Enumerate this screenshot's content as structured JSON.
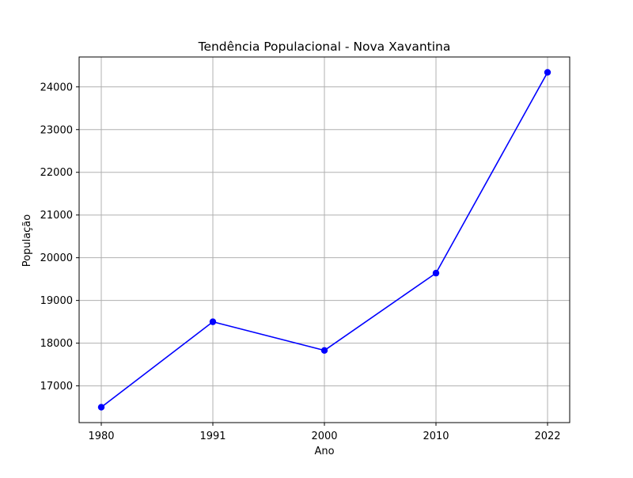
{
  "chart_data": {
    "type": "line",
    "title": "Tendência Populacional - Nova Xavantina",
    "xlabel": "Ano",
    "ylabel": "População",
    "x": [
      1980,
      1991,
      2000,
      2010,
      2022
    ],
    "x_tick_labels": [
      "1980",
      "1991",
      "2000",
      "2010",
      "2022"
    ],
    "series": [
      {
        "values": [
          16500,
          18500,
          17830,
          19640,
          24340
        ],
        "color": "#0000ff",
        "marker": "circle"
      }
    ],
    "ylim": [
      16140,
      24700
    ],
    "y_ticks": [
      17000,
      18000,
      19000,
      20000,
      21000,
      22000,
      23000,
      24000
    ],
    "y_tick_labels": [
      "17000",
      "18000",
      "19000",
      "20000",
      "21000",
      "22000",
      "23000",
      "24000"
    ],
    "grid": true,
    "x_scale": "categorical-evenly-spaced"
  }
}
